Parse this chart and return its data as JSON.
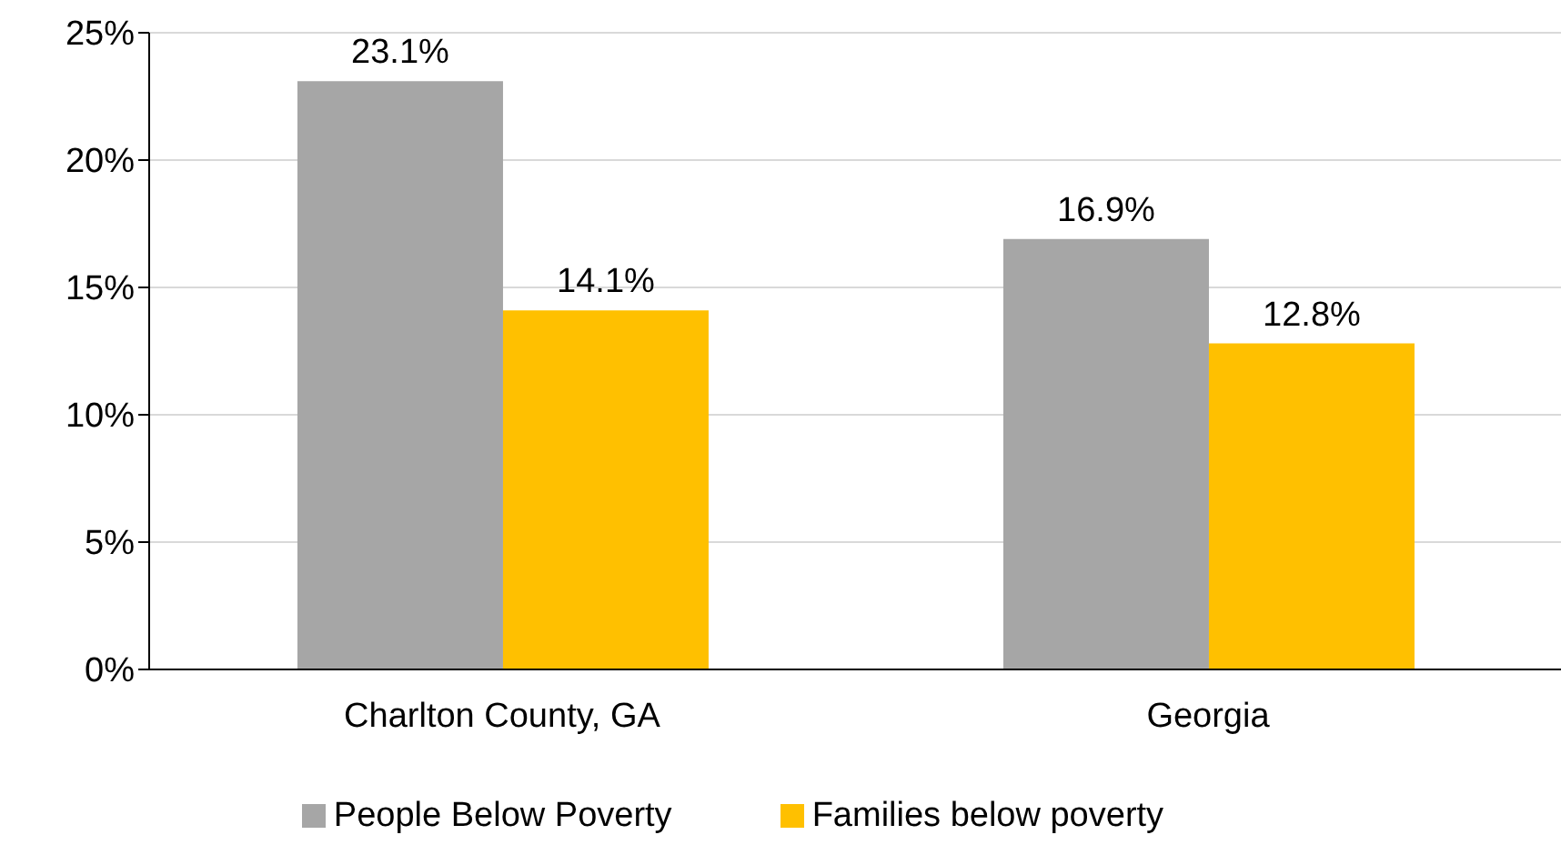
{
  "chart_data": {
    "type": "bar",
    "categories": [
      "Charlton County, GA",
      "Georgia"
    ],
    "series": [
      {
        "name": "People Below Poverty",
        "color": "#a6a6a6",
        "values": [
          23.1,
          16.9
        ],
        "value_labels": [
          "23.1%",
          "16.9%"
        ]
      },
      {
        "name": "Families below poverty",
        "color": "#ffc000",
        "values": [
          14.1,
          12.8
        ],
        "value_labels": [
          "14.1%",
          "12.8%"
        ]
      }
    ],
    "ylim": [
      0,
      25
    ],
    "yticks": [
      {
        "value": 0,
        "label": "0%"
      },
      {
        "value": 5,
        "label": "5%"
      },
      {
        "value": 10,
        "label": "10%"
      },
      {
        "value": 15,
        "label": "15%"
      },
      {
        "value": 20,
        "label": "20%"
      },
      {
        "value": 25,
        "label": "25%"
      }
    ],
    "grid": "y",
    "legend": "bottom"
  }
}
